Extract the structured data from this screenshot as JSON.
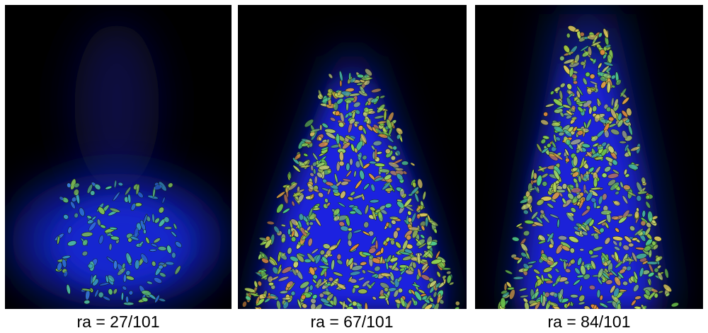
{
  "panels": [
    {
      "caption": "ra = 27/101"
    },
    {
      "caption": "ra = 67/101"
    },
    {
      "caption": "ra = 84/101"
    }
  ]
}
